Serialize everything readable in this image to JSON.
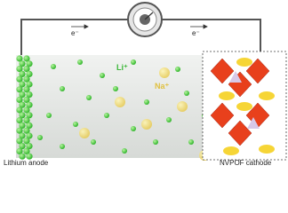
{
  "labels": {
    "electron_left": "e⁻",
    "electron_right": "e⁻",
    "lithium_ion": "Li⁺",
    "sodium_ion": "Na⁺",
    "anode": "Lithium anode",
    "cathode": "NVPOF cathode"
  }
}
